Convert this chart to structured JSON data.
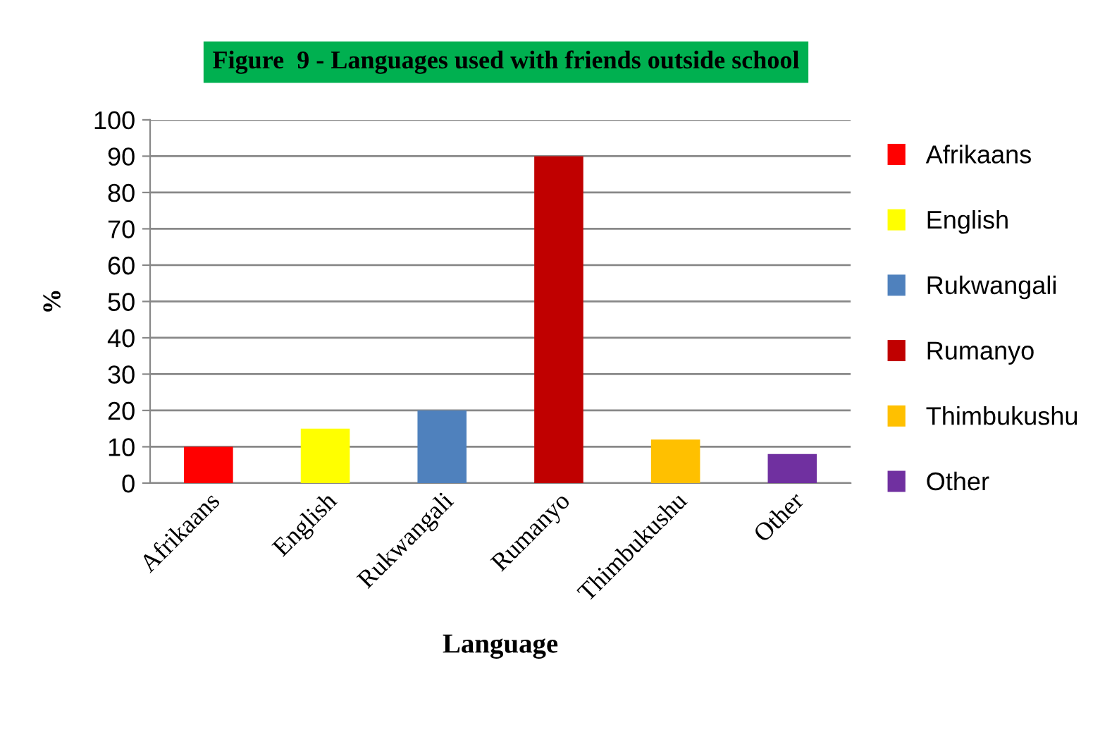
{
  "chart_data": {
    "type": "bar",
    "title": "Figure  9 - Languages used with friends outside school",
    "categories": [
      "Afrikaans",
      "English",
      "Rukwangali",
      "Rumanyo",
      "Thimbukushu",
      "Other"
    ],
    "stacked": true,
    "series": [
      {
        "name": "Afrikaans",
        "color": "#ff0000",
        "values": [
          10,
          null,
          null,
          null,
          null,
          null
        ]
      },
      {
        "name": "English",
        "color": "#ffff00",
        "values": [
          null,
          15,
          null,
          null,
          null,
          null
        ]
      },
      {
        "name": "Rukwangali",
        "color": "#4f81bd",
        "values": [
          null,
          null,
          20,
          null,
          null,
          null
        ]
      },
      {
        "name": "Rumanyo",
        "color": "#c00000",
        "values": [
          null,
          null,
          null,
          90,
          null,
          null
        ]
      },
      {
        "name": "Thimbukushu",
        "color": "#ffc000",
        "values": [
          null,
          null,
          null,
          null,
          12,
          null
        ]
      },
      {
        "name": "Other",
        "color": "#7030a0",
        "values": [
          null,
          null,
          null,
          null,
          null,
          8
        ]
      }
    ],
    "xlabel": "Language",
    "ylabel": "%",
    "ylim": [
      0,
      100
    ],
    "yticks": [
      0,
      10,
      20,
      30,
      40,
      50,
      60,
      70,
      80,
      90,
      100
    ],
    "grid": "y",
    "legend": "right"
  }
}
